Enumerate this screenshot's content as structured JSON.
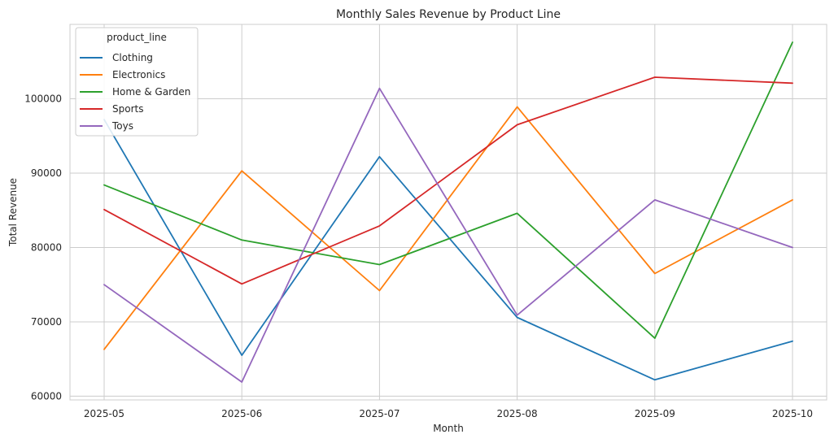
{
  "chart_data": {
    "type": "line",
    "title": "Monthly Sales Revenue by Product Line",
    "xlabel": "Month",
    "ylabel": "Total Revenue",
    "categories": [
      "2025-05",
      "2025-06",
      "2025-07",
      "2025-08",
      "2025-09",
      "2025-10"
    ],
    "ylim": [
      59500,
      110000
    ],
    "yticks": [
      60000,
      70000,
      80000,
      90000,
      100000
    ],
    "grid": true,
    "legend": {
      "title": "product_line",
      "placement": "top-left"
    },
    "series": [
      {
        "name": "Clothing",
        "color": "#1f77b4",
        "values": [
          97200,
          65500,
          92200,
          70600,
          62200,
          67400
        ]
      },
      {
        "name": "Electronics",
        "color": "#ff7f0e",
        "values": [
          66300,
          90300,
          74200,
          98900,
          76500,
          86400
        ]
      },
      {
        "name": "Home & Garden",
        "color": "#2ca02c",
        "values": [
          88400,
          81000,
          77700,
          84600,
          67800,
          107600
        ]
      },
      {
        "name": "Sports",
        "color": "#d62728",
        "values": [
          85100,
          75100,
          82900,
          96500,
          102900,
          102100
        ]
      },
      {
        "name": "Toys",
        "color": "#9467bd",
        "values": [
          75000,
          61900,
          101400,
          70900,
          86400,
          80000
        ]
      }
    ]
  }
}
